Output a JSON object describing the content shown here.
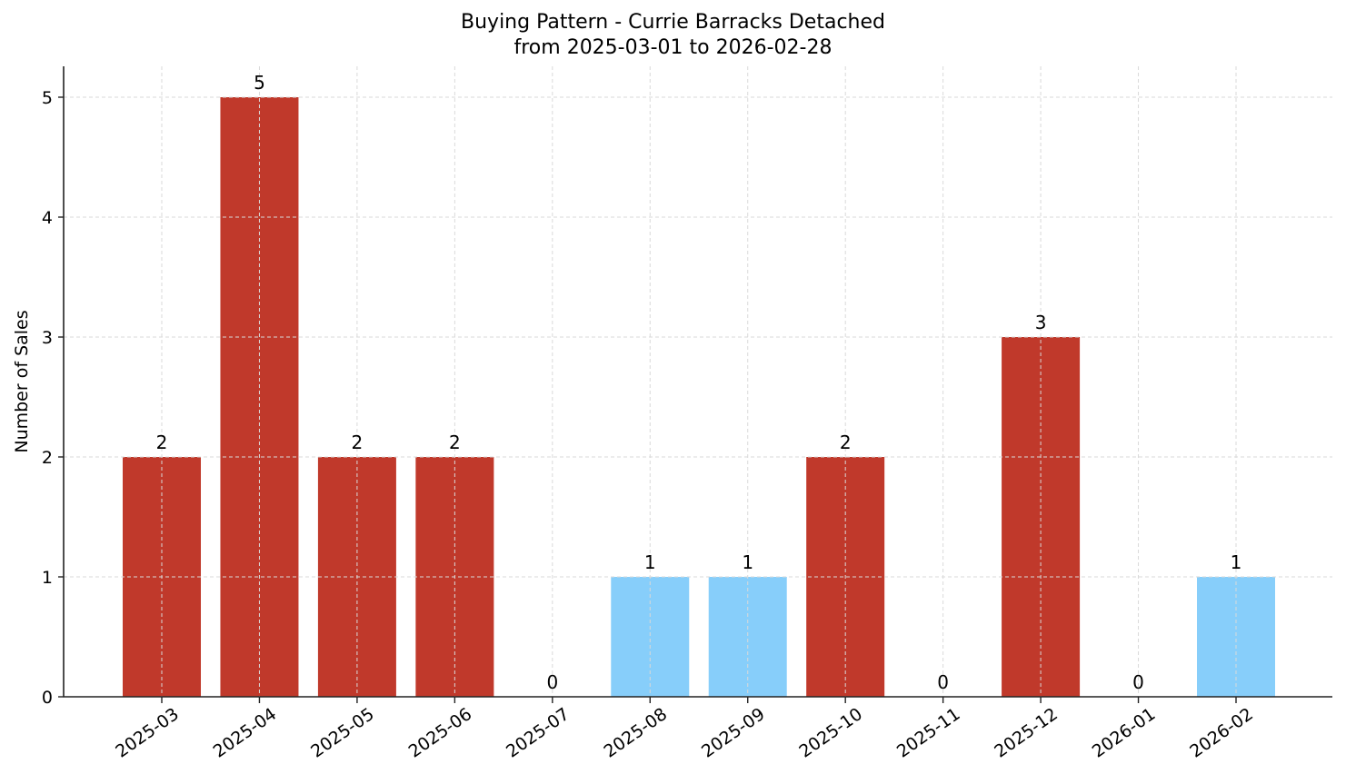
{
  "chart_data": {
    "type": "bar",
    "title": "Buying Pattern - Currie Barracks Detached",
    "subtitle": "from 2025-03-01 to 2026-02-28",
    "xlabel": "",
    "ylabel": "Number of Sales",
    "categories": [
      "2025-03",
      "2025-04",
      "2025-05",
      "2025-06",
      "2025-07",
      "2025-08",
      "2025-09",
      "2025-10",
      "2025-11",
      "2025-12",
      "2026-01",
      "2026-02"
    ],
    "values": [
      2,
      5,
      2,
      2,
      0,
      1,
      1,
      2,
      0,
      3,
      0,
      1
    ],
    "bar_colors": [
      "#c0392b",
      "#c0392b",
      "#c0392b",
      "#c0392b",
      "#c0392b",
      "#87cefa",
      "#87cefa",
      "#c0392b",
      "#c0392b",
      "#c0392b",
      "#c0392b",
      "#87cefa"
    ],
    "data_labels": [
      "2",
      "5",
      "2",
      "2",
      "0",
      "1",
      "1",
      "2",
      "0",
      "3",
      "0",
      "1"
    ],
    "yticks": [
      0,
      1,
      2,
      3,
      4,
      5
    ],
    "ylim": [
      0,
      5.25
    ],
    "grid": true,
    "legend": null,
    "colors": {
      "high": "#c0392b",
      "low": "#87cefa",
      "axis": "#222222",
      "grid": "#d9d9d9"
    }
  }
}
